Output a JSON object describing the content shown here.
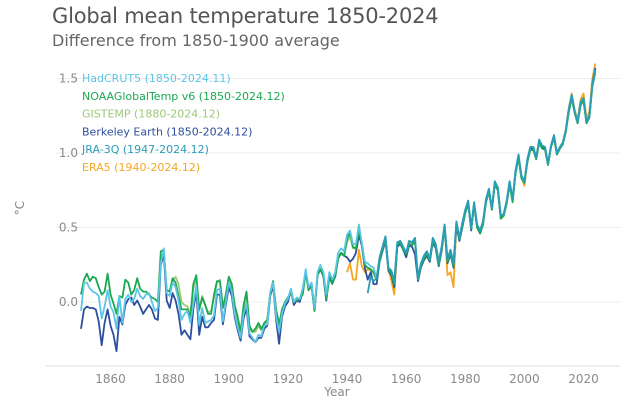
{
  "chart_data": {
    "type": "line",
    "title": "Global mean temperature 1850-2024",
    "subtitle": "Difference from 1850-1900 average",
    "xlabel": "Year",
    "ylabel": "°C",
    "xlim": [
      1850,
      2024
    ],
    "ylim": [
      -0.4,
      1.6
    ],
    "x_ticks": [
      1860,
      1880,
      1900,
      1920,
      1940,
      1960,
      1980,
      2000,
      2020
    ],
    "y_ticks": [
      0.0,
      0.5,
      1.0,
      1.5
    ],
    "y_tick_labels": [
      "0.0",
      "0.5",
      "1.0",
      "1.5"
    ],
    "grid": "horizontal",
    "legend_placement": "top-left",
    "series": [
      {
        "name": "ERA5 (1940-2024.12)",
        "color": "#f5a623",
        "start": 1940,
        "values": [
          0.2,
          0.26,
          0.15,
          0.15,
          0.35,
          0.24,
          0.2,
          0.22,
          0.21,
          0.2,
          0.15,
          0.28,
          0.36,
          0.42,
          0.22,
          0.14,
          0.05,
          0.38,
          0.4,
          0.36,
          0.33,
          0.4,
          0.39,
          0.41,
          0.16,
          0.25,
          0.3,
          0.33,
          0.28,
          0.42,
          0.38,
          0.26,
          0.36,
          0.5,
          0.18,
          0.2,
          0.1,
          0.52,
          0.42,
          0.52,
          0.61,
          0.67,
          0.5,
          0.66,
          0.51,
          0.48,
          0.54,
          0.68,
          0.75,
          0.62,
          0.8,
          0.76,
          0.57,
          0.58,
          0.67,
          0.8,
          0.68,
          0.87,
          0.98,
          0.84,
          0.78,
          0.94,
          1.02,
          1.02,
          0.96,
          1.07,
          1.04,
          1.03,
          0.92,
          1.05,
          1.12,
          1.0,
          1.04,
          1.07,
          1.16,
          1.3,
          1.4,
          1.29,
          1.22,
          1.36,
          1.4,
          1.23,
          1.28,
          1.5,
          1.6
        ]
      },
      {
        "name": "GISTEMP (1880-2024.12)",
        "color": "#9cc877",
        "start": 1880,
        "values": [
          0.06,
          0.14,
          0.17,
          0.12,
          0.0,
          -0.02,
          -0.03,
          -0.08,
          0.09,
          0.16,
          -0.06,
          0.04,
          -0.02,
          -0.07,
          -0.06,
          0.03,
          0.13,
          0.15,
          -0.03,
          0.04,
          0.16,
          0.1,
          -0.03,
          -0.12,
          -0.21,
          -0.04,
          0.05,
          -0.18,
          -0.2,
          -0.2,
          -0.16,
          -0.19,
          -0.15,
          -0.14,
          0.05,
          0.12,
          -0.06,
          -0.17,
          -0.06,
          -0.01,
          0.02,
          0.07,
          0.0,
          0.02,
          0.02,
          0.06,
          0.2,
          0.09,
          0.11,
          -0.05,
          0.18,
          0.22,
          0.18,
          0.04,
          0.17,
          0.13,
          0.18,
          0.3,
          0.32,
          0.31,
          0.4,
          0.44,
          0.36,
          0.36,
          0.47,
          0.38,
          0.24,
          0.23,
          0.22,
          0.19,
          0.15,
          0.28,
          0.35,
          0.42,
          0.22,
          0.19,
          0.12,
          0.38,
          0.4,
          0.35,
          0.32,
          0.39,
          0.38,
          0.41,
          0.15,
          0.24,
          0.29,
          0.32,
          0.28,
          0.41,
          0.37,
          0.25,
          0.35,
          0.5,
          0.27,
          0.33,
          0.24,
          0.52,
          0.42,
          0.51,
          0.6,
          0.66,
          0.49,
          0.65,
          0.5,
          0.46,
          0.52,
          0.67,
          0.74,
          0.62,
          0.79,
          0.75,
          0.56,
          0.58,
          0.66,
          0.79,
          0.67,
          0.86,
          0.97,
          0.83,
          0.8,
          0.94,
          1.02,
          1.02,
          0.96,
          1.07,
          1.03,
          1.02,
          0.92,
          1.04,
          1.1,
          0.99,
          1.03,
          1.06,
          1.14,
          1.27,
          1.37,
          1.27,
          1.2,
          1.32,
          1.35,
          1.2,
          1.24,
          1.45,
          1.54
        ]
      },
      {
        "name": "Berkeley Earth (1850-2024.12)",
        "color": "#2d4f9e",
        "start": 1850,
        "values": [
          -0.18,
          -0.05,
          -0.03,
          -0.04,
          -0.04,
          -0.05,
          -0.13,
          -0.29,
          -0.14,
          -0.05,
          -0.16,
          -0.22,
          -0.33,
          -0.1,
          -0.15,
          -0.02,
          0.02,
          0.03,
          -0.02,
          0.01,
          -0.03,
          -0.08,
          -0.05,
          -0.02,
          -0.05,
          -0.11,
          -0.12,
          0.25,
          0.32,
          0.01,
          -0.04,
          0.06,
          0.01,
          -0.08,
          -0.22,
          -0.19,
          -0.22,
          -0.25,
          -0.05,
          0.07,
          -0.22,
          -0.1,
          -0.17,
          -0.17,
          -0.14,
          -0.12,
          0.05,
          0.05,
          -0.15,
          -0.02,
          0.1,
          0.04,
          -0.1,
          -0.19,
          -0.26,
          -0.11,
          -0.04,
          -0.23,
          -0.25,
          -0.27,
          -0.24,
          -0.24,
          -0.18,
          -0.16,
          0.04,
          0.11,
          -0.12,
          -0.28,
          -0.1,
          -0.03,
          0.0,
          0.08,
          -0.02,
          0.01,
          0.0,
          0.07,
          0.2,
          0.08,
          0.11,
          -0.06,
          0.18,
          0.22,
          0.17,
          0.01,
          0.18,
          0.13,
          0.17,
          0.3,
          0.33,
          0.31,
          0.3,
          0.27,
          0.29,
          0.33,
          0.45,
          0.38,
          0.23,
          0.15,
          0.2,
          0.12,
          0.12,
          0.27,
          0.34,
          0.41,
          0.21,
          0.18,
          0.1,
          0.37,
          0.39,
          0.35,
          0.3,
          0.38,
          0.37,
          0.32,
          0.14,
          0.23,
          0.28,
          0.31,
          0.27,
          0.4,
          0.36,
          0.24,
          0.34,
          0.5,
          0.26,
          0.32,
          0.23,
          0.51,
          0.41,
          0.5,
          0.6,
          0.66,
          0.48,
          0.66,
          0.5,
          0.46,
          0.52,
          0.68,
          0.75,
          0.62,
          0.8,
          0.76,
          0.56,
          0.58,
          0.67,
          0.8,
          0.68,
          0.87,
          0.98,
          0.84,
          0.8,
          0.95,
          1.03,
          1.03,
          0.96,
          1.08,
          1.04,
          1.03,
          0.92,
          1.04,
          1.11,
          0.99,
          1.03,
          1.06,
          1.15,
          1.29,
          1.38,
          1.27,
          1.2,
          1.34,
          1.36,
          1.2,
          1.24,
          1.47,
          1.57
        ]
      },
      {
        "name": "NOAAGlobalTemp v6 (1850-2024.12)",
        "color": "#1aa850",
        "start": 1850,
        "values": [
          0.05,
          0.15,
          0.19,
          0.14,
          0.17,
          0.16,
          0.1,
          0.05,
          0.07,
          0.19,
          0.05,
          -0.01,
          -0.08,
          0.04,
          0.03,
          0.15,
          0.13,
          0.05,
          0.08,
          0.16,
          0.09,
          0.07,
          0.07,
          0.05,
          0.03,
          0.02,
          0.0,
          0.34,
          0.35,
          0.08,
          0.07,
          0.16,
          0.13,
          0.04,
          -0.05,
          -0.05,
          -0.05,
          -0.1,
          0.12,
          0.18,
          -0.05,
          0.03,
          -0.02,
          -0.08,
          -0.08,
          0.05,
          0.14,
          0.14,
          -0.04,
          0.05,
          0.17,
          0.12,
          -0.02,
          -0.1,
          -0.2,
          -0.02,
          0.07,
          -0.16,
          -0.2,
          -0.18,
          -0.14,
          -0.18,
          -0.14,
          -0.12,
          0.06,
          0.14,
          -0.05,
          -0.15,
          -0.05,
          0.0,
          0.03,
          0.07,
          0.0,
          0.01,
          0.02,
          0.05,
          0.2,
          0.08,
          0.11,
          -0.06,
          0.18,
          0.22,
          0.18,
          0.02,
          0.16,
          0.12,
          0.17,
          0.29,
          0.33,
          0.31,
          0.42,
          0.47,
          0.37,
          0.36,
          0.48,
          0.39,
          0.25,
          0.23,
          0.22,
          0.2,
          0.15,
          0.28,
          0.35,
          0.42,
          0.22,
          0.19,
          0.12,
          0.38,
          0.4,
          0.35,
          0.32,
          0.39,
          0.38,
          0.41,
          0.15,
          0.24,
          0.29,
          0.32,
          0.28,
          0.41,
          0.37,
          0.25,
          0.35,
          0.5,
          0.27,
          0.33,
          0.24,
          0.52,
          0.42,
          0.51,
          0.6,
          0.66,
          0.49,
          0.65,
          0.5,
          0.46,
          0.52,
          0.67,
          0.74,
          0.62,
          0.79,
          0.75,
          0.56,
          0.58,
          0.66,
          0.79,
          0.67,
          0.86,
          0.97,
          0.83,
          0.8,
          0.94,
          1.02,
          1.02,
          0.96,
          1.07,
          1.03,
          1.02,
          0.92,
          1.04,
          1.1,
          0.99,
          1.03,
          1.06,
          1.14,
          1.27,
          1.37,
          1.27,
          1.2,
          1.32,
          1.35,
          1.2,
          1.24,
          1.45,
          1.54
        ]
      },
      {
        "name": "HadCRUT5 (1850-2024.11)",
        "color": "#5cc6e6",
        "start": 1850,
        "values": [
          -0.06,
          0.13,
          0.13,
          0.09,
          0.07,
          0.06,
          0.04,
          -0.11,
          -0.03,
          0.08,
          -0.03,
          -0.07,
          -0.18,
          0.04,
          -0.14,
          0.02,
          0.05,
          0.0,
          0.02,
          0.09,
          0.04,
          0.02,
          0.05,
          0.06,
          0.0,
          -0.06,
          -0.04,
          0.26,
          0.36,
          0.06,
          0.04,
          0.13,
          0.1,
          0.01,
          -0.12,
          -0.08,
          -0.06,
          -0.14,
          -0.02,
          0.11,
          -0.15,
          -0.04,
          -0.14,
          -0.13,
          -0.12,
          -0.09,
          0.08,
          0.09,
          -0.13,
          0.0,
          0.13,
          0.07,
          -0.08,
          -0.17,
          -0.24,
          -0.08,
          -0.01,
          -0.21,
          -0.24,
          -0.27,
          -0.22,
          -0.23,
          -0.16,
          -0.15,
          0.06,
          0.13,
          -0.1,
          -0.2,
          -0.08,
          -0.01,
          0.02,
          0.09,
          0.0,
          0.03,
          0.02,
          0.09,
          0.22,
          0.1,
          0.13,
          -0.04,
          0.2,
          0.25,
          0.2,
          0.05,
          0.2,
          0.15,
          0.2,
          0.33,
          0.36,
          0.34,
          0.45,
          0.48,
          0.39,
          0.39,
          0.52,
          0.4,
          0.27,
          0.26,
          0.24,
          0.23,
          0.16,
          0.3,
          0.37,
          0.44,
          0.23,
          0.21,
          0.14,
          0.4,
          0.41,
          0.37,
          0.33,
          0.41,
          0.4,
          0.43,
          0.16,
          0.26,
          0.31,
          0.34,
          0.29,
          0.43,
          0.39,
          0.27,
          0.37,
          0.52,
          0.29,
          0.35,
          0.26,
          0.54,
          0.43,
          0.53,
          0.62,
          0.68,
          0.5,
          0.67,
          0.52,
          0.48,
          0.54,
          0.69,
          0.76,
          0.63,
          0.81,
          0.77,
          0.58,
          0.59,
          0.68,
          0.81,
          0.69,
          0.88,
          0.99,
          0.85,
          0.81,
          0.96,
          1.04,
          1.04,
          0.97,
          1.09,
          1.05,
          1.04,
          0.93,
          1.05,
          1.12,
          1.0,
          1.04,
          1.07,
          1.15,
          1.29,
          1.39,
          1.28,
          1.21,
          1.34,
          1.37,
          1.21,
          1.25,
          1.46,
          1.56
        ]
      },
      {
        "name": "JRA-3Q (1947-2024.12)",
        "color": "#2a9cb6",
        "start": 1947,
        "values": [
          0.06,
          0.17,
          0.14,
          0.16,
          0.3,
          0.37,
          0.44,
          0.23,
          0.21,
          0.14,
          0.4,
          0.41,
          0.37,
          0.33,
          0.41,
          0.4,
          0.43,
          0.16,
          0.26,
          0.31,
          0.34,
          0.29,
          0.43,
          0.39,
          0.27,
          0.37,
          0.52,
          0.29,
          0.35,
          0.26,
          0.54,
          0.43,
          0.53,
          0.62,
          0.68,
          0.5,
          0.67,
          0.52,
          0.48,
          0.54,
          0.69,
          0.76,
          0.63,
          0.81,
          0.77,
          0.58,
          0.59,
          0.68,
          0.81,
          0.69,
          0.88,
          0.99,
          0.85,
          0.81,
          0.96,
          1.04,
          1.04,
          0.97,
          1.09,
          1.05,
          1.04,
          0.93,
          1.05,
          1.12,
          1.0,
          1.04,
          1.07,
          1.15,
          1.29,
          1.39,
          1.28,
          1.21,
          1.34,
          1.37,
          1.21,
          1.25,
          1.46,
          1.56
        ]
      }
    ],
    "legend_order": [
      "HadCRUT5 (1850-2024.11)",
      "NOAAGlobalTemp v6 (1850-2024.12)",
      "GISTEMP (1880-2024.12)",
      "Berkeley Earth (1850-2024.12)",
      "JRA-3Q (1947-2024.12)",
      "ERA5 (1940-2024.12)"
    ]
  }
}
